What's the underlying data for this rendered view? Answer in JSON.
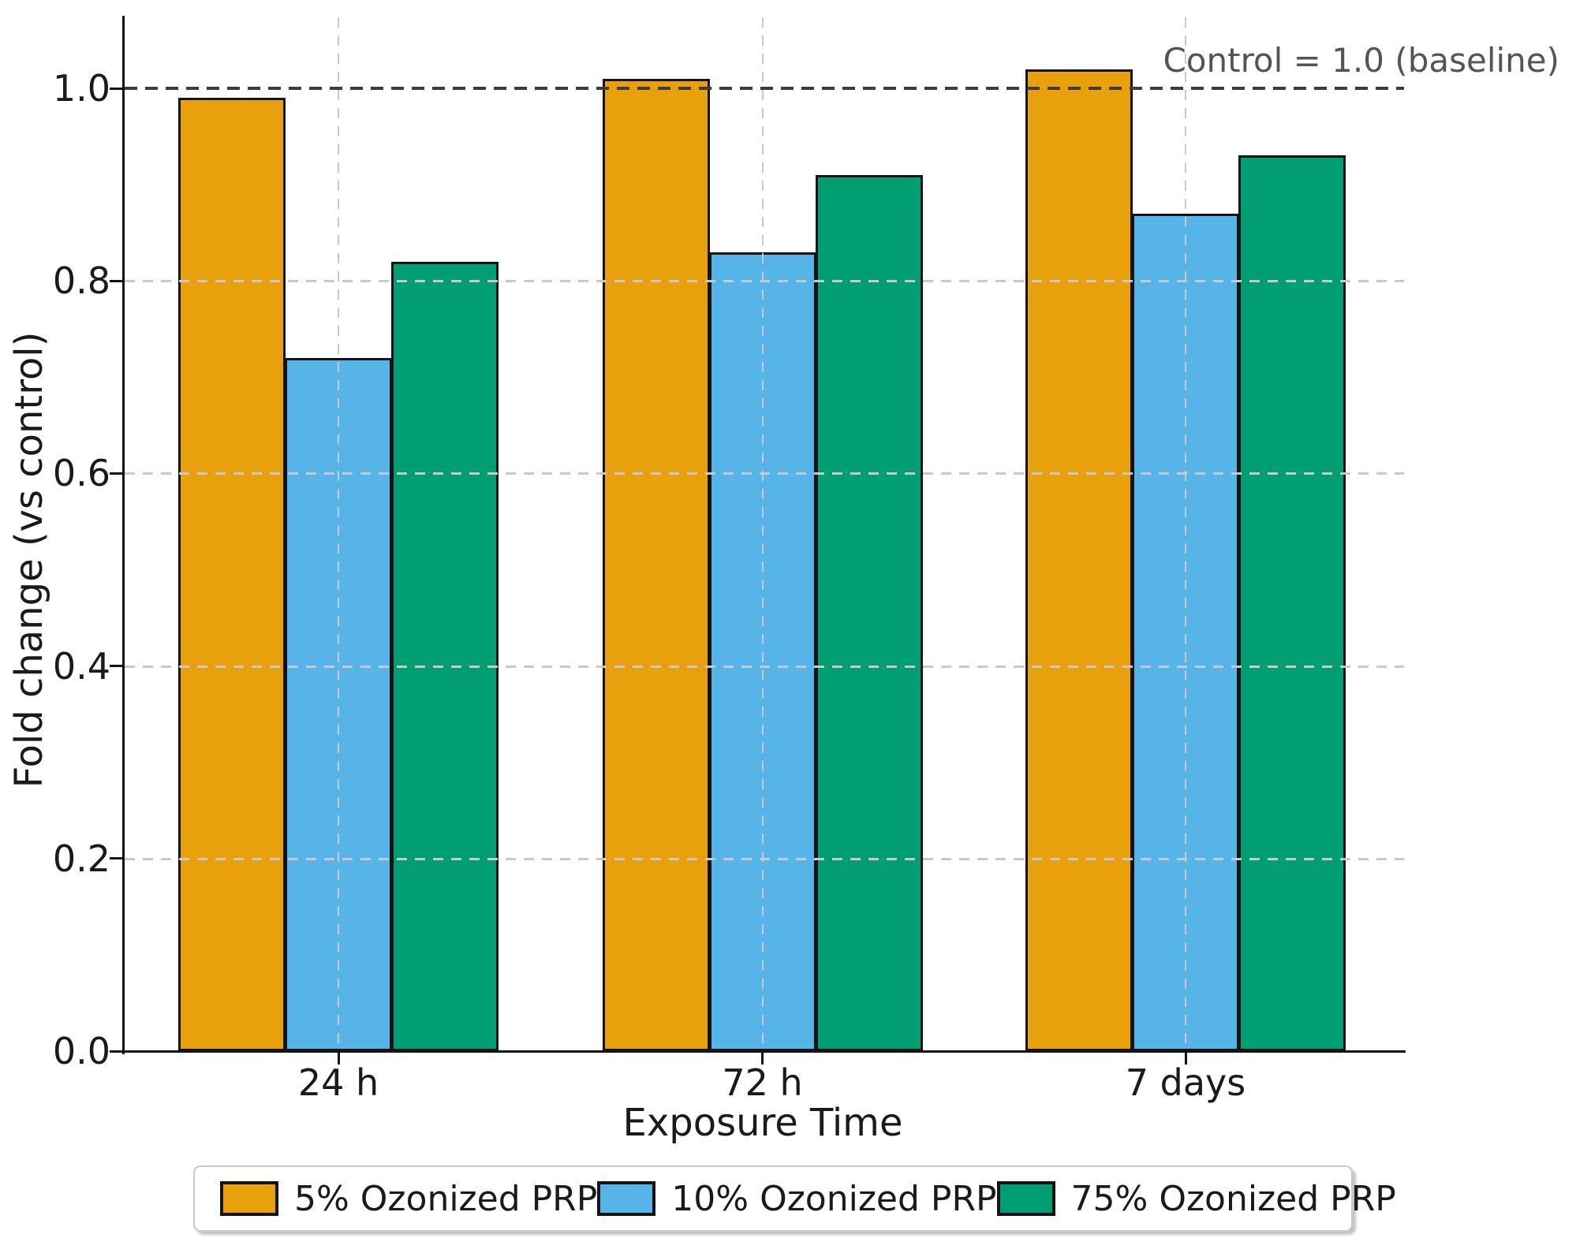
{
  "chart_data": {
    "type": "bar",
    "title": "",
    "categories": [
      "24 h",
      "72 h",
      "7 days"
    ],
    "series": [
      {
        "name": "5% Ozonized PRP",
        "color": "#E8A00D",
        "values": [
          0.99,
          1.01,
          1.02
        ]
      },
      {
        "name": "10% Ozonized PRP",
        "color": "#56B4E9",
        "values": [
          0.72,
          0.83,
          0.87
        ]
      },
      {
        "name": "75% Ozonized PRP",
        "color": "#029E73",
        "values": [
          0.82,
          0.91,
          0.93
        ]
      }
    ],
    "xlabel": "Exposure Time",
    "ylabel": "Fold change (vs control)",
    "ylim": [
      0,
      1.07
    ],
    "yticks": [
      0.0,
      0.2,
      0.4,
      0.6,
      0.8,
      1.0
    ],
    "ytick_labels": [
      "0.0",
      "0.2",
      "0.4",
      "0.6",
      "0.8",
      "1.0"
    ],
    "grid": true,
    "grid_color": "#c9c9c9",
    "bar_edge_color": "#141414",
    "legend_position": "bottom",
    "legend_labels": [
      "5% Ozonized PRP",
      "10% Ozonized PRP",
      "75% Ozonized PRP"
    ],
    "reference_line": {
      "value": 1.0,
      "label": "Control = 1.0 (baseline)",
      "color": "#3d3d3d"
    },
    "annotation_color": "#545454"
  }
}
